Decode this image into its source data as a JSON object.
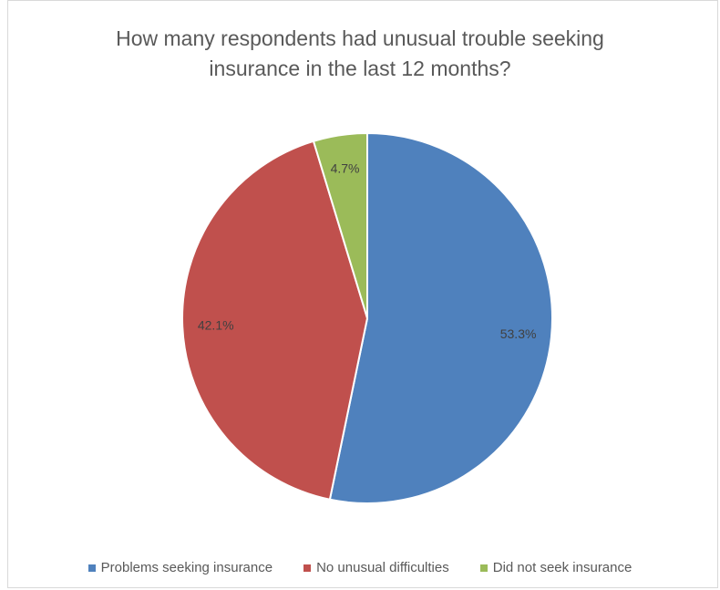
{
  "chart_data": {
    "type": "pie",
    "title": [
      "How many respondents had unusual trouble seeking",
      "insurance in the last 12 months?"
    ],
    "categories": [
      "Problems seeking insurance",
      "No unusual difficulties",
      "Did not seek insurance"
    ],
    "values": [
      53.3,
      42.1,
      4.7
    ],
    "labels": [
      "53.3%",
      "42.1%",
      "4.7%"
    ],
    "colors": [
      "#4f81bd",
      "#c0504d",
      "#9bbb59"
    ],
    "legend_position": "bottom",
    "start_angle": "top, clockwise"
  }
}
